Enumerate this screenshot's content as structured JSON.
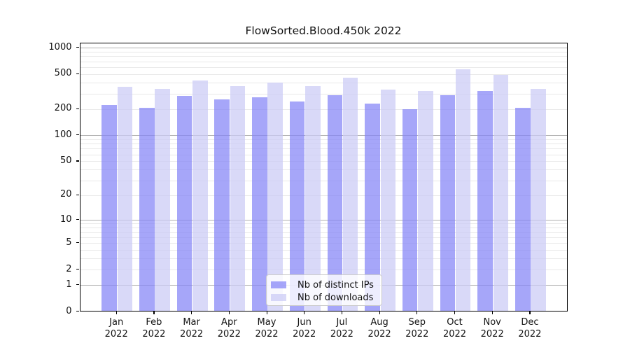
{
  "title": "FlowSorted.Blood.450k 2022",
  "legend": {
    "items": [
      {
        "label": "Nb of distinct IPs",
        "color": "rgba(132,132,246,0.72)"
      },
      {
        "label": "Nb of downloads",
        "color": "rgba(203,203,245,0.72)"
      }
    ]
  },
  "axes": {
    "y_tick_labels": [
      "0",
      "1",
      "2",
      "5",
      "10",
      "20",
      "50",
      "100",
      "200",
      "500",
      "1000"
    ],
    "x_year_label": "2022"
  },
  "chart_data": {
    "type": "bar",
    "title": "FlowSorted.Blood.450k 2022",
    "scale": "log1p",
    "categories": [
      "Jan",
      "Feb",
      "Mar",
      "Apr",
      "May",
      "Jun",
      "Jul",
      "Aug",
      "Sep",
      "Oct",
      "Nov",
      "Dec"
    ],
    "year": "2022",
    "series": [
      {
        "name": "Nb of distinct IPs",
        "color": "#a6a6f9",
        "fill": "rgba(132,132,246,0.72)",
        "values": [
          215,
          199,
          274,
          250,
          266,
          235,
          277,
          226,
          195,
          278,
          310,
          200
        ]
      },
      {
        "name": "Nb of downloads",
        "color": "#d9d9f7",
        "fill": "rgba(203,203,245,0.72)",
        "values": [
          350,
          327,
          408,
          357,
          386,
          355,
          440,
          321,
          310,
          554,
          478,
          328
        ]
      }
    ],
    "yticks": [
      0,
      1,
      2,
      5,
      10,
      20,
      50,
      100,
      200,
      500,
      1000
    ],
    "ylim": [
      0,
      1128
    ],
    "grid": "both",
    "major_grid_color": "#b0b0b0",
    "minor_grid_color": "#e9e9e9",
    "legend_position": "lower center"
  }
}
